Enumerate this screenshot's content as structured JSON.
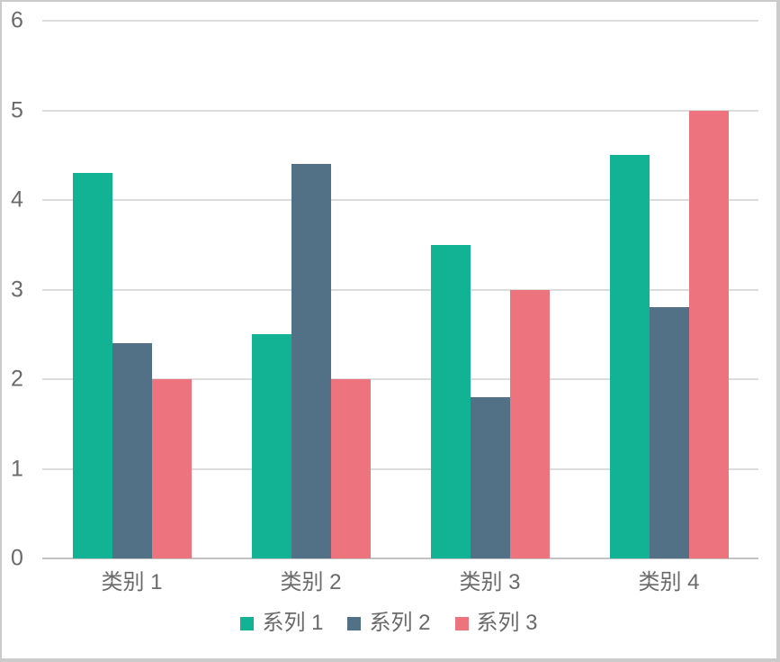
{
  "chart_data": {
    "type": "bar",
    "title": "",
    "xlabel": "",
    "ylabel": "",
    "categories": [
      "类别 1",
      "类别 2",
      "类别 3",
      "类别 4"
    ],
    "series": [
      {
        "name": "系列 1",
        "color": "#12b294",
        "values": [
          4.3,
          2.5,
          3.5,
          4.5
        ]
      },
      {
        "name": "系列 2",
        "color": "#527086",
        "values": [
          2.4,
          4.4,
          1.8,
          2.8
        ]
      },
      {
        "name": "系列 3",
        "color": "#ed747e",
        "values": [
          2.0,
          2.0,
          3.0,
          5.0
        ]
      }
    ],
    "ylim": [
      0,
      6
    ],
    "yticks": [
      0,
      1,
      2,
      3,
      4,
      5,
      6
    ],
    "grid": true,
    "legend_position": "bottom"
  },
  "colors": {
    "gridline": "#dcdcdc",
    "axis_line": "#c3c3c3",
    "tick_text": "#6a6a6a",
    "background": "#ffffff",
    "frame_border": "#cbcbcb"
  }
}
